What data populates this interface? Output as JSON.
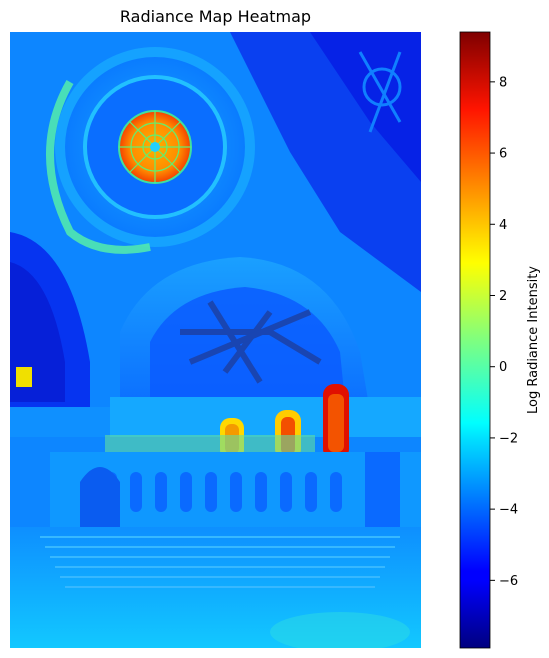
{
  "chart_data": {
    "type": "heatmap",
    "title": "Radiance Map Heatmap",
    "xlabel": "",
    "ylabel": "",
    "colormap": "jet",
    "colorbar": {
      "label": "Log Radiance Intensity",
      "vmin": -7.9,
      "vmax": 9.4,
      "ticks": [
        8,
        6,
        4,
        2,
        0,
        -2,
        -4,
        -6
      ],
      "tick_labels": [
        "8",
        "6",
        "4",
        "2",
        "0",
        "−2",
        "−4",
        "−6"
      ]
    },
    "axes_visible": false
  }
}
